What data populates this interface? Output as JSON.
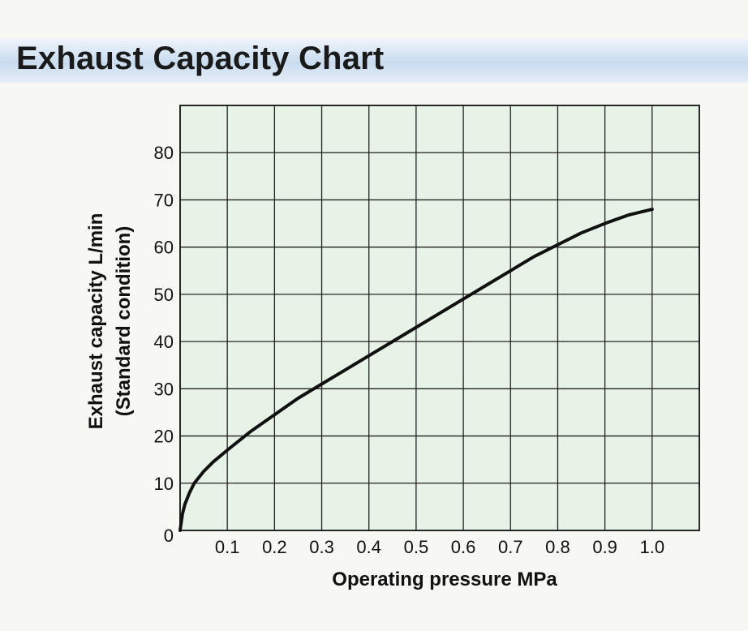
{
  "chart_data": {
    "type": "line",
    "title": "Exhaust Capacity Chart",
    "xlabel": "Operating pressure MPa",
    "ylabel": "Exhaust capacity L/min",
    "ylabel2": "(Standard condition)",
    "xlim": [
      0,
      1.1
    ],
    "ylim": [
      0,
      90
    ],
    "x_ticks": [
      "0.1",
      "0.2",
      "0.3",
      "0.4",
      "0.5",
      "0.6",
      "0.7",
      "0.8",
      "0.9",
      "1.0"
    ],
    "x_tick_values": [
      0.1,
      0.2,
      0.3,
      0.4,
      0.5,
      0.6,
      0.7,
      0.8,
      0.9,
      1.0
    ],
    "y_ticks": [
      "0",
      "10",
      "20",
      "30",
      "40",
      "50",
      "60",
      "70",
      "80"
    ],
    "y_tick_values": [
      0,
      10,
      20,
      30,
      40,
      50,
      60,
      70,
      80
    ],
    "grid": true,
    "background_color": "#e6f3e6",
    "line_color": "#111111",
    "series": [
      {
        "x": [
          0,
          0.005,
          0.01,
          0.02,
          0.03,
          0.05,
          0.07,
          0.1,
          0.15,
          0.2,
          0.25,
          0.3,
          0.35,
          0.4,
          0.45,
          0.5,
          0.55,
          0.6,
          0.65,
          0.7,
          0.75,
          0.8,
          0.85,
          0.9,
          0.95,
          1.0
        ],
        "values": [
          0,
          3.5,
          5.5,
          8,
          10,
          12.5,
          14.5,
          17,
          21,
          24.5,
          28,
          31,
          34,
          37,
          40,
          43,
          46,
          49,
          52,
          55,
          58,
          60.5,
          63,
          65,
          66.8,
          68
        ]
      }
    ]
  }
}
